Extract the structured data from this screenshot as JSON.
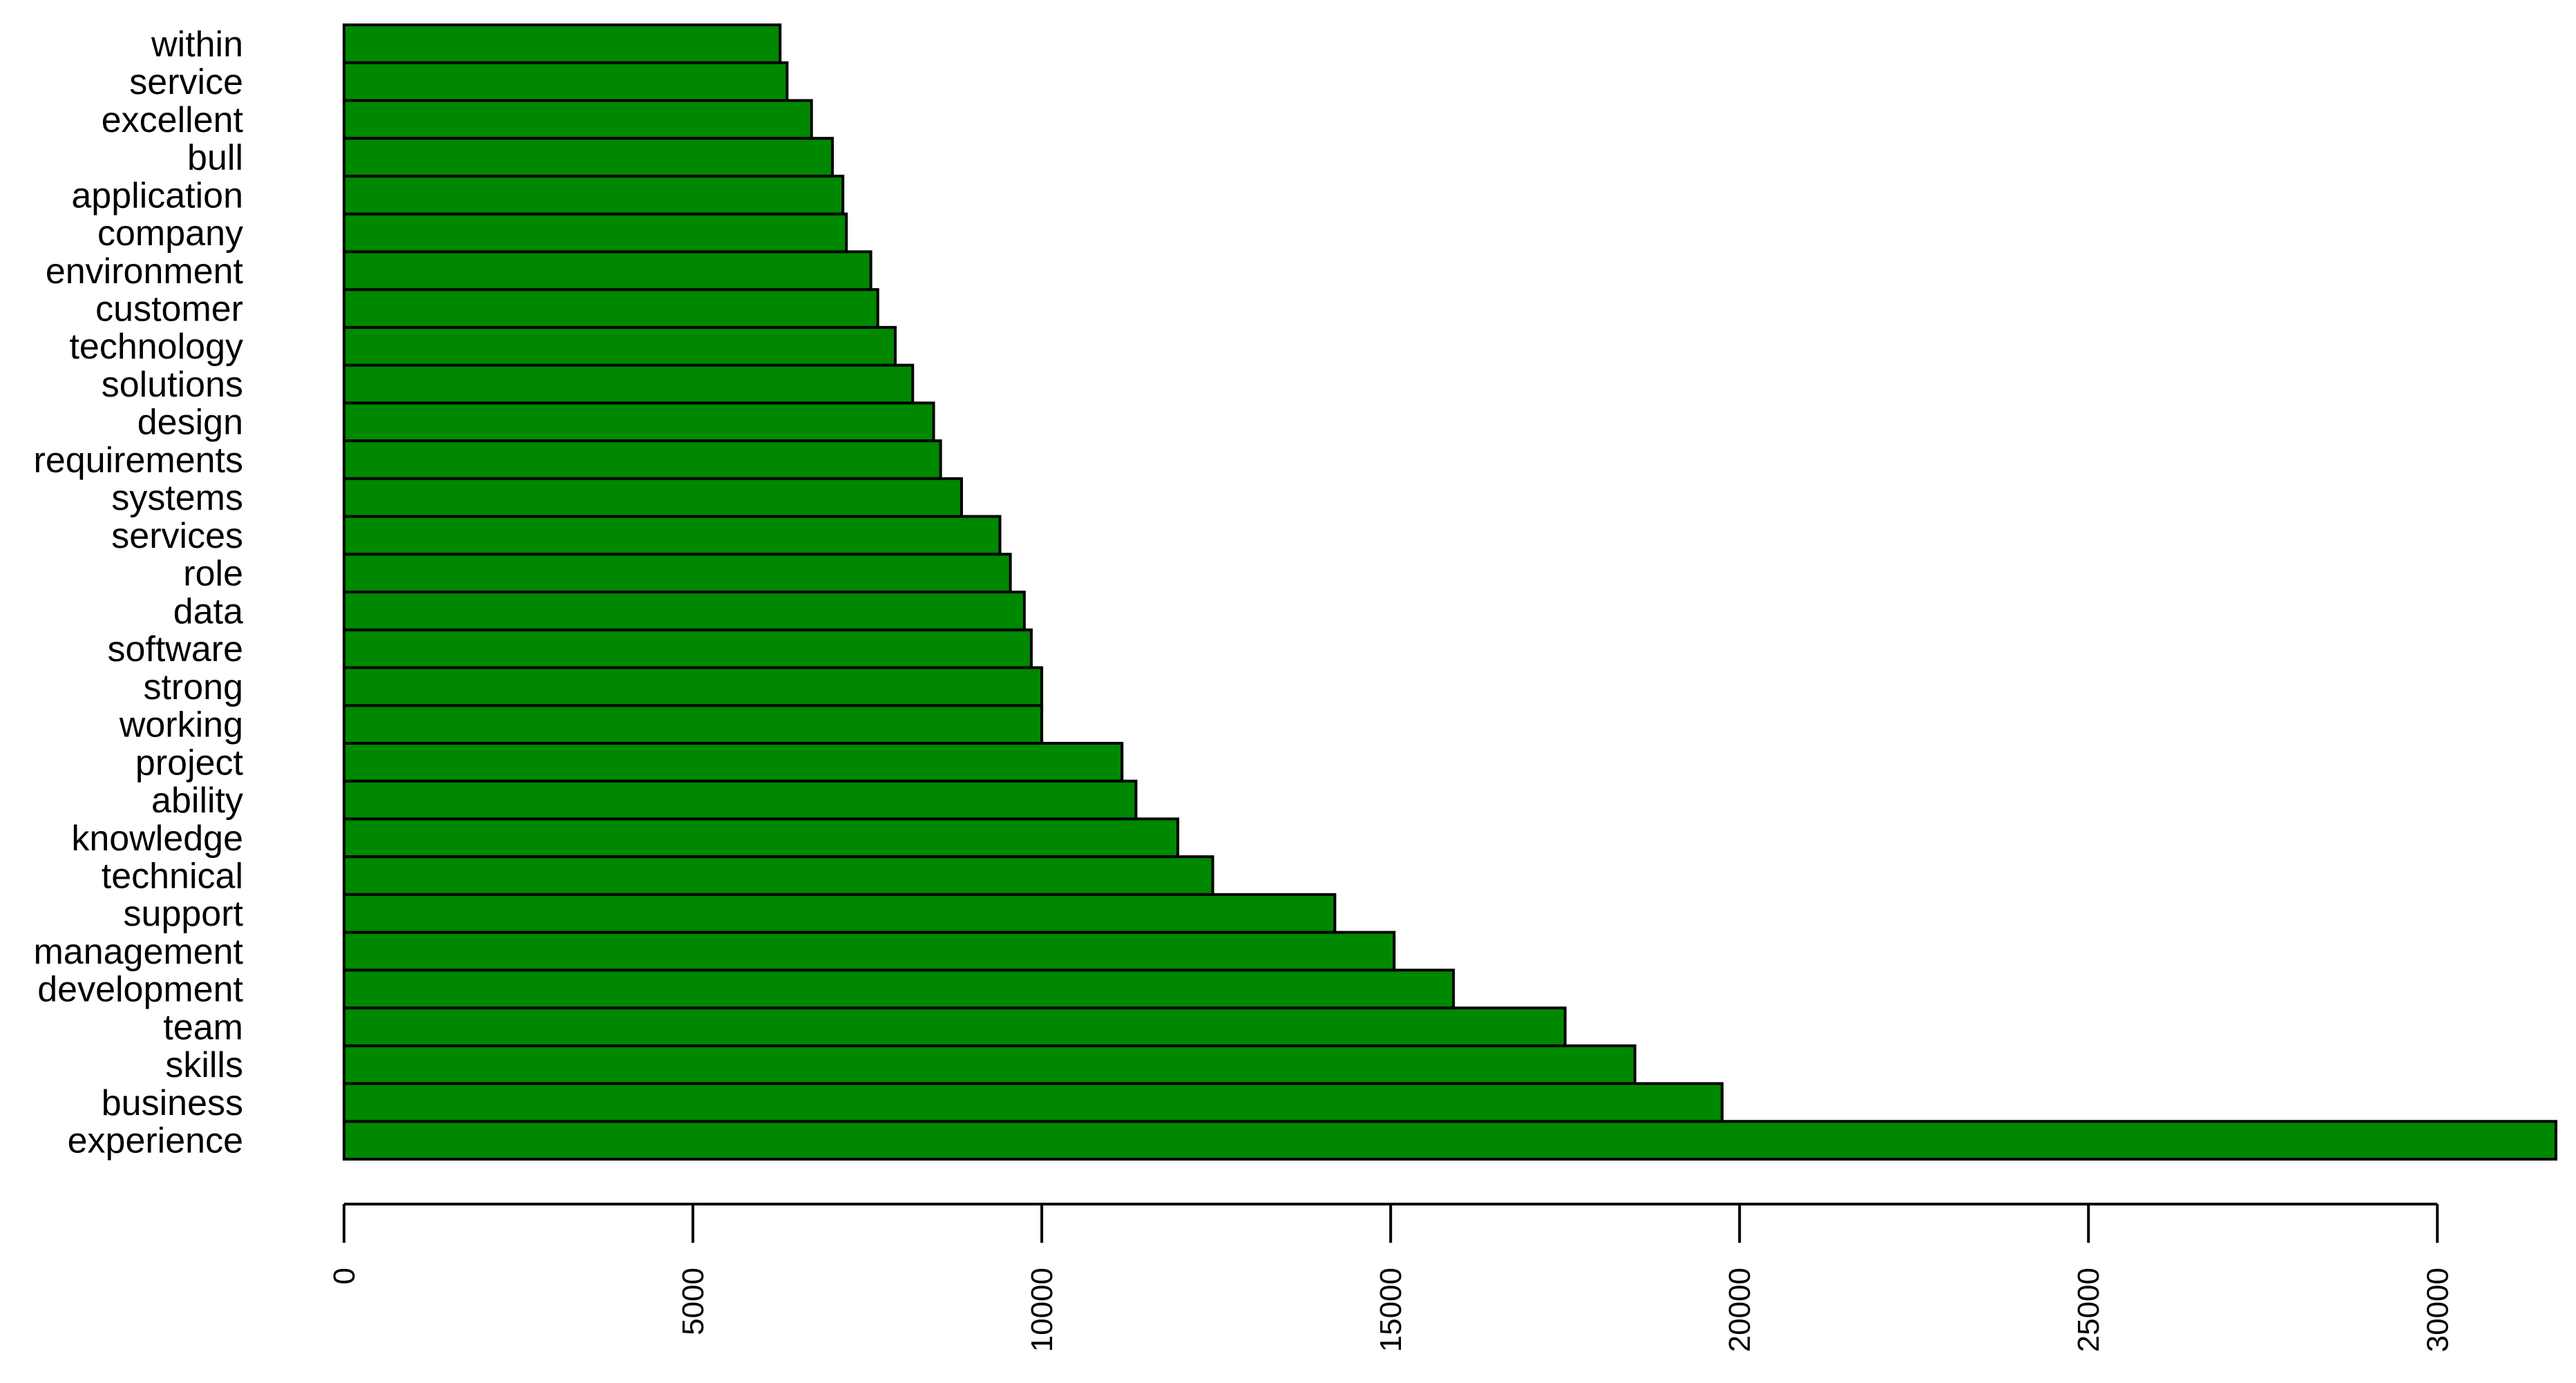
{
  "chart_data": {
    "type": "bar",
    "orientation": "horizontal",
    "categories": [
      "experience",
      "business",
      "skills",
      "team",
      "development",
      "management",
      "support",
      "technical",
      "knowledge",
      "ability",
      "project",
      "working",
      "strong",
      "software",
      "data",
      "role",
      "services",
      "systems",
      "requirements",
      "design",
      "solutions",
      "technology",
      "customer",
      "environment",
      "company",
      "application",
      "bull",
      "excellent",
      "service",
      "within"
    ],
    "values": [
      31700,
      19750,
      18500,
      17500,
      15900,
      15050,
      14200,
      12450,
      11950,
      11350,
      11150,
      10000,
      10000,
      9850,
      9750,
      9550,
      9400,
      8850,
      8550,
      8450,
      8150,
      7900,
      7650,
      7550,
      7200,
      7150,
      7000,
      6700,
      6350,
      6250
    ],
    "bar_color": "#008800",
    "bar_edge_color": "#000000",
    "xlim": [
      0,
      31700
    ],
    "xticks": [
      0,
      5000,
      10000,
      15000,
      20000,
      25000,
      30000
    ],
    "xlabel": "",
    "ylabel": "",
    "title": "",
    "grid": false,
    "legend": "none"
  }
}
